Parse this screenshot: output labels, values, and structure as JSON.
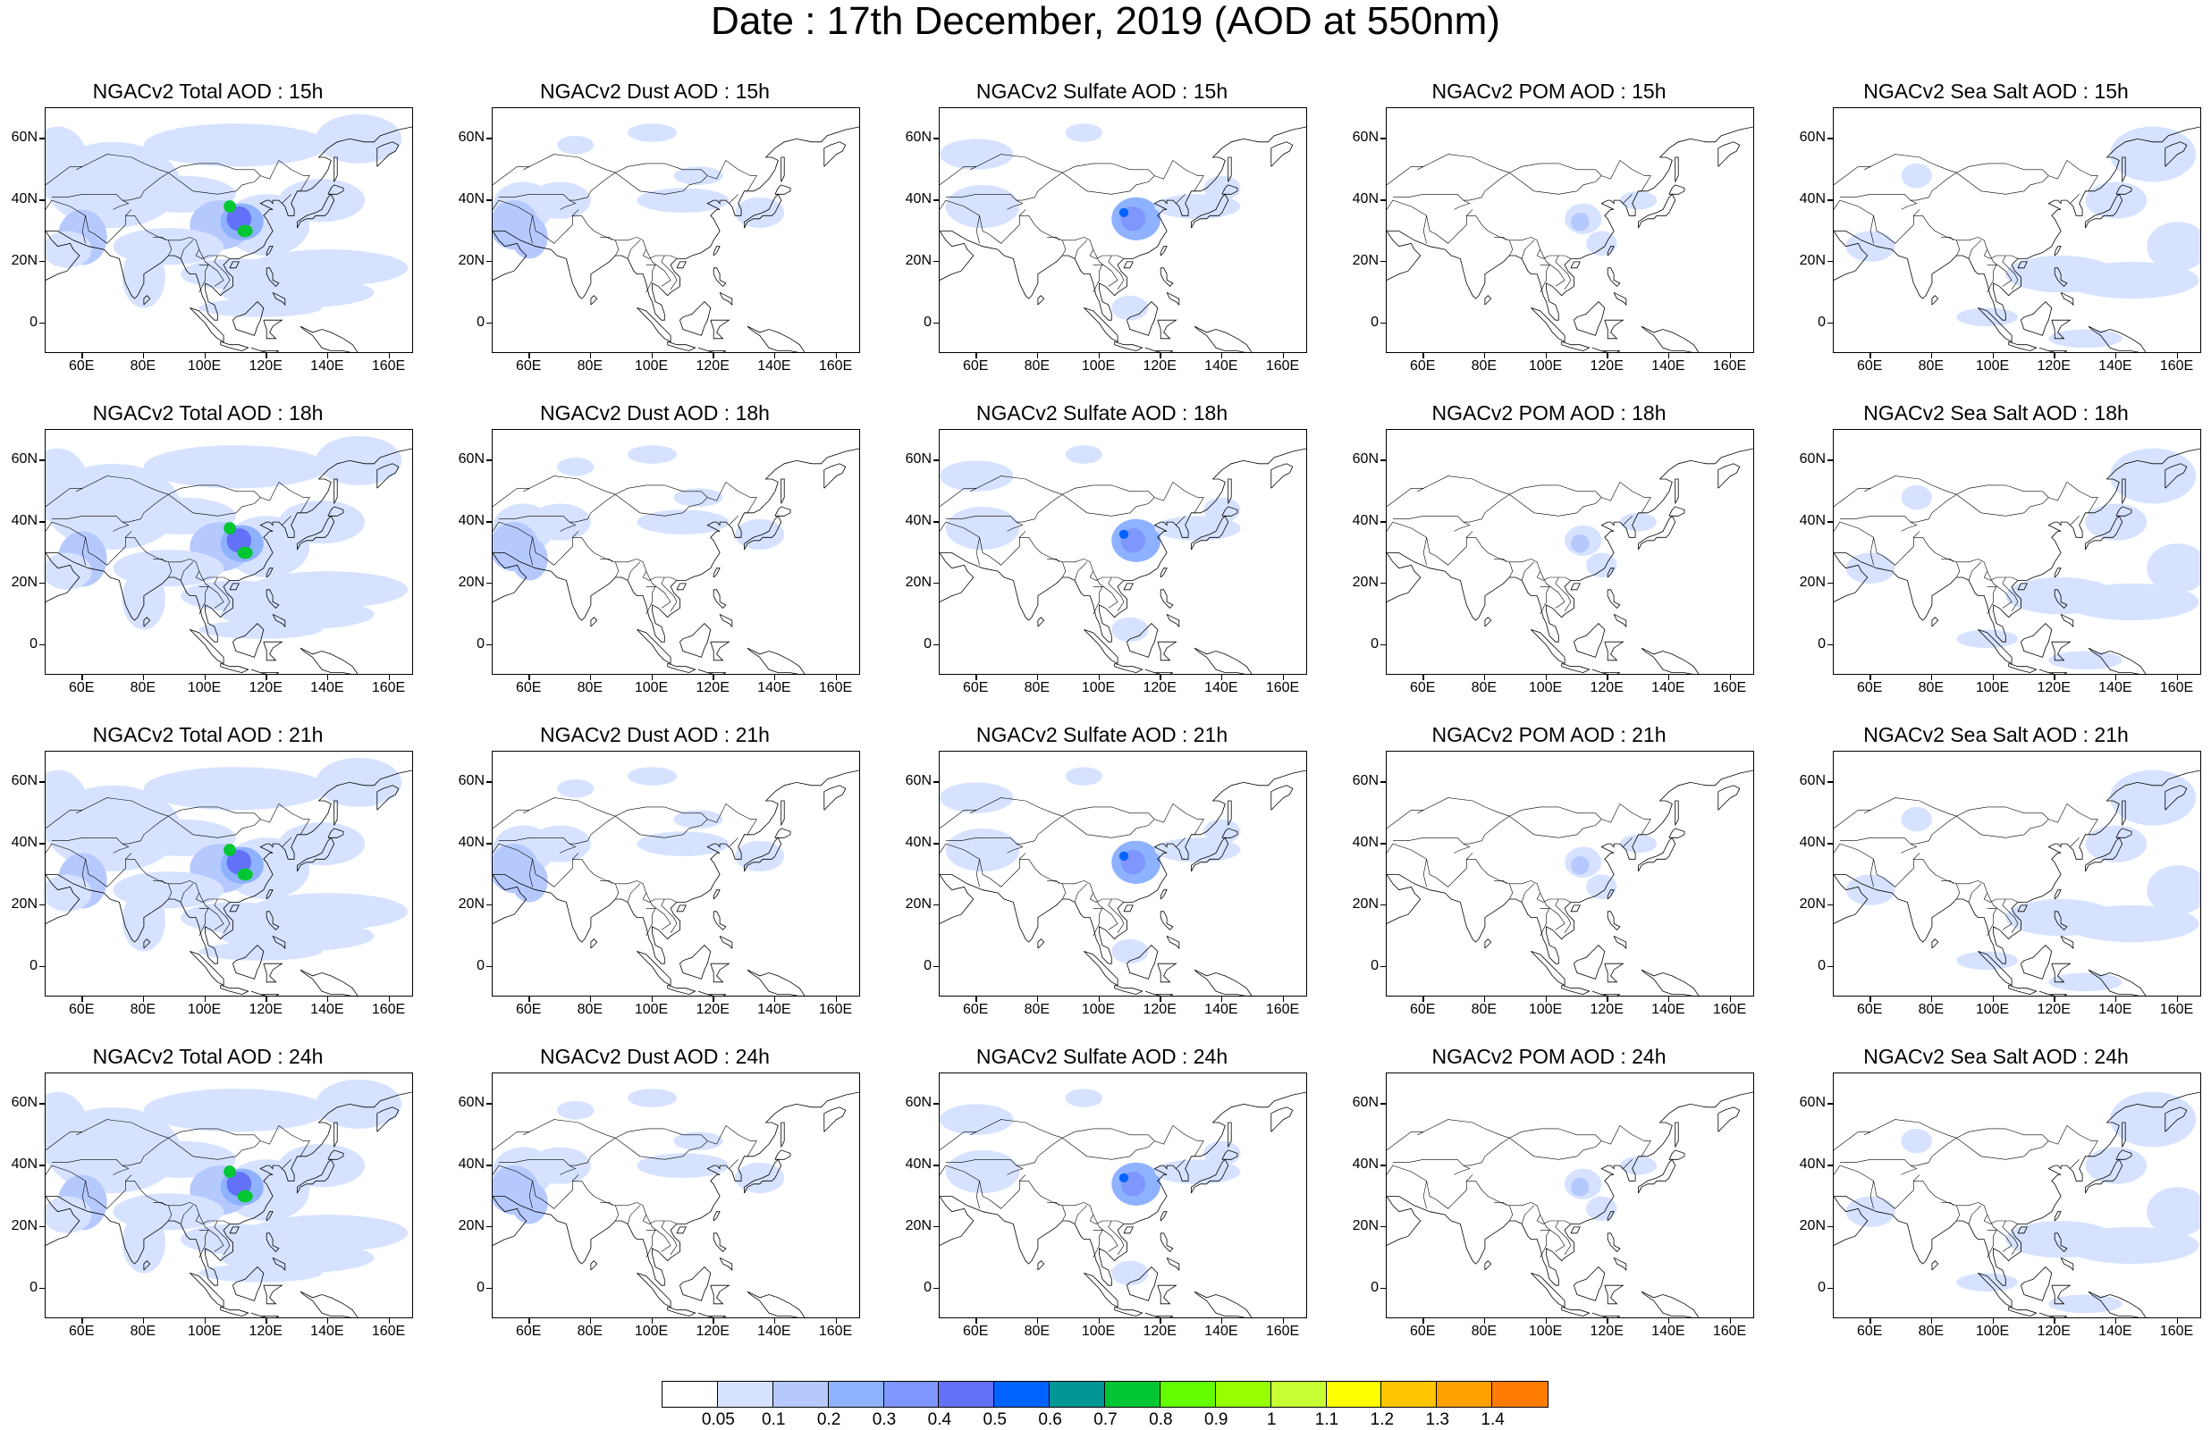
{
  "title": "Date : 17th December, 2019 (AOD at 550nm)",
  "grid": {
    "lat_labels": [
      "60N",
      "40N",
      "20N",
      "0"
    ],
    "lat_values": [
      60,
      40,
      20,
      0
    ],
    "lon_labels": [
      "60E",
      "80E",
      "100E",
      "120E",
      "140E",
      "160E"
    ],
    "lon_values": [
      60,
      80,
      100,
      120,
      140,
      160
    ],
    "lon_range": [
      48,
      168
    ],
    "lat_range": [
      -10,
      70
    ]
  },
  "rows": [
    {
      "hour": "15h",
      "panels": [
        {
          "species": "total",
          "title": "NGACv2 Total AOD : 15h"
        },
        {
          "species": "dust",
          "title": "NGACv2 Dust AOD : 15h"
        },
        {
          "species": "sulfate",
          "title": "NGACv2 Sulfate AOD : 15h"
        },
        {
          "species": "pom",
          "title": "NGACv2 POM AOD : 15h"
        },
        {
          "species": "seasalt",
          "title": "NGACv2 Sea Salt AOD : 15h"
        }
      ]
    },
    {
      "hour": "18h",
      "panels": [
        {
          "species": "total",
          "title": "NGACv2 Total AOD : 18h"
        },
        {
          "species": "dust",
          "title": "NGACv2 Dust AOD : 18h"
        },
        {
          "species": "sulfate",
          "title": "NGACv2 Sulfate AOD : 18h"
        },
        {
          "species": "pom",
          "title": "NGACv2 POM AOD : 18h"
        },
        {
          "species": "seasalt",
          "title": "NGACv2 Sea Salt AOD : 18h"
        }
      ]
    },
    {
      "hour": "21h",
      "panels": [
        {
          "species": "total",
          "title": "NGACv2 Total AOD : 21h"
        },
        {
          "species": "dust",
          "title": "NGACv2 Dust AOD : 21h"
        },
        {
          "species": "sulfate",
          "title": "NGACv2 Sulfate AOD : 21h"
        },
        {
          "species": "pom",
          "title": "NGACv2 POM AOD : 21h"
        },
        {
          "species": "seasalt",
          "title": "NGACv2 Sea Salt AOD : 21h"
        }
      ]
    },
    {
      "hour": "24h",
      "panels": [
        {
          "species": "total",
          "title": "NGACv2 Total AOD : 24h"
        },
        {
          "species": "dust",
          "title": "NGACv2 Dust AOD : 24h"
        },
        {
          "species": "sulfate",
          "title": "NGACv2 Sulfate AOD : 24h"
        },
        {
          "species": "pom",
          "title": "NGACv2 POM AOD : 24h"
        },
        {
          "species": "seasalt",
          "title": "NGACv2 Sea Salt  AOD : 24h"
        }
      ]
    }
  ],
  "colorbar": {
    "labels": [
      "0.05",
      "0.1",
      "0.2",
      "0.3",
      "0.4",
      "0.5",
      "0.6",
      "0.7",
      "0.8",
      "0.9",
      "1",
      "1.1",
      "1.2",
      "1.3",
      "1.4"
    ],
    "colors": [
      "#ffffff",
      "#d6e2ff",
      "#b5c9ff",
      "#8eb2ff",
      "#7f96ff",
      "#6370f8",
      "#0063ff",
      "#009696",
      "#00c633",
      "#63ff00",
      "#96ff00",
      "#c6ff33",
      "#ffff00",
      "#ffc600",
      "#ffa000",
      "#ff7c00",
      "#ff1900"
    ]
  }
}
